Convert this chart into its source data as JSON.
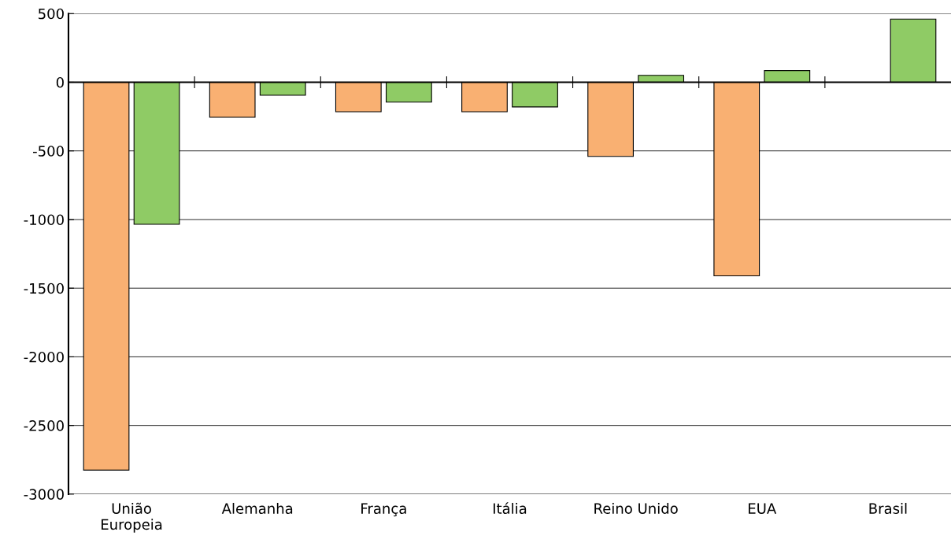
{
  "chart_data": {
    "type": "bar",
    "categories": [
      "União\nEuropeia",
      "Alemanha",
      "França",
      "Itália",
      "Reino Unido",
      "EUA",
      "Brasil"
    ],
    "series": [
      {
        "color": "#f9b072",
        "values": [
          -2825,
          -255,
          -215,
          -215,
          -540,
          -1410,
          null
        ]
      },
      {
        "color": "#8fcb65",
        "values": [
          -1035,
          -95,
          -145,
          -180,
          50,
          85,
          460
        ]
      }
    ],
    "ylim": [
      -3000,
      500
    ],
    "yticks": [
      {
        "value": -3000,
        "label": "-3000"
      },
      {
        "value": -2500,
        "label": "-2500"
      },
      {
        "value": -2000,
        "label": "-2000"
      },
      {
        "value": -1500,
        "label": "-1500"
      },
      {
        "value": -1000,
        "label": "-1000"
      },
      {
        "value": -500,
        "label": "-500"
      },
      0,
      500
    ],
    "grid": "y",
    "ref_lines": [
      {
        "axis": "y",
        "value": 0,
        "color": "#000000"
      }
    ]
  }
}
